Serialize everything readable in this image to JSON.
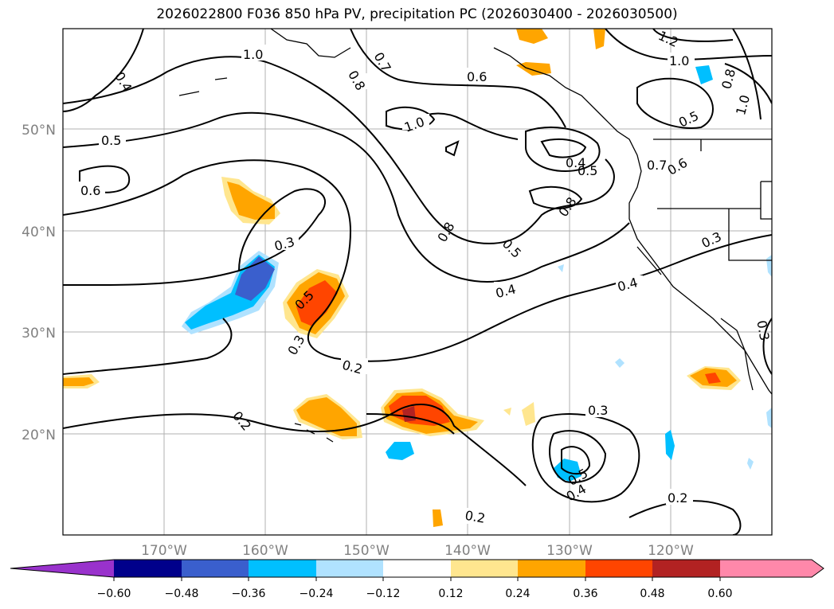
{
  "title": "2026022800 F036 850 hPa PV, precipitation PC (2026030400 - 2026030500)",
  "map": {
    "lon_labels": [
      "170°W",
      "160°W",
      "150°W",
      "140°W",
      "130°W",
      "120°W"
    ],
    "lat_labels": [
      "50°N",
      "40°N",
      "30°N",
      "20°N"
    ],
    "contour_labels": [
      "1.0",
      "0.8",
      "0.7",
      "0.6",
      "0.4",
      "1.2",
      "1.0",
      "0.8",
      "1.0",
      "0.5",
      "1.0",
      "0.5",
      "0.6",
      "0.4",
      "0.5",
      "0.6",
      "0.7",
      "0.8",
      "0.8",
      "0.3",
      "0.3",
      "0.5",
      "0.5",
      "0.4",
      "0.4",
      "0.3",
      "0.3",
      "0.2",
      "0.2",
      "0.3",
      "0.5",
      "0.4",
      "0.2",
      "0.2"
    ]
  },
  "colorbar": {
    "tick_labels": [
      "−0.60",
      "−0.48",
      "−0.36",
      "−0.24",
      "−0.12",
      "0.12",
      "0.24",
      "0.36",
      "0.48",
      "0.60"
    ],
    "colors": [
      "#9932cc",
      "#00008b",
      "#3a5fcd",
      "#00bfff",
      "#b0e2ff",
      "#ffffff",
      "#ffe68f",
      "#ffa500",
      "#ff4500",
      "#b22222",
      "#ff88aa"
    ]
  }
}
